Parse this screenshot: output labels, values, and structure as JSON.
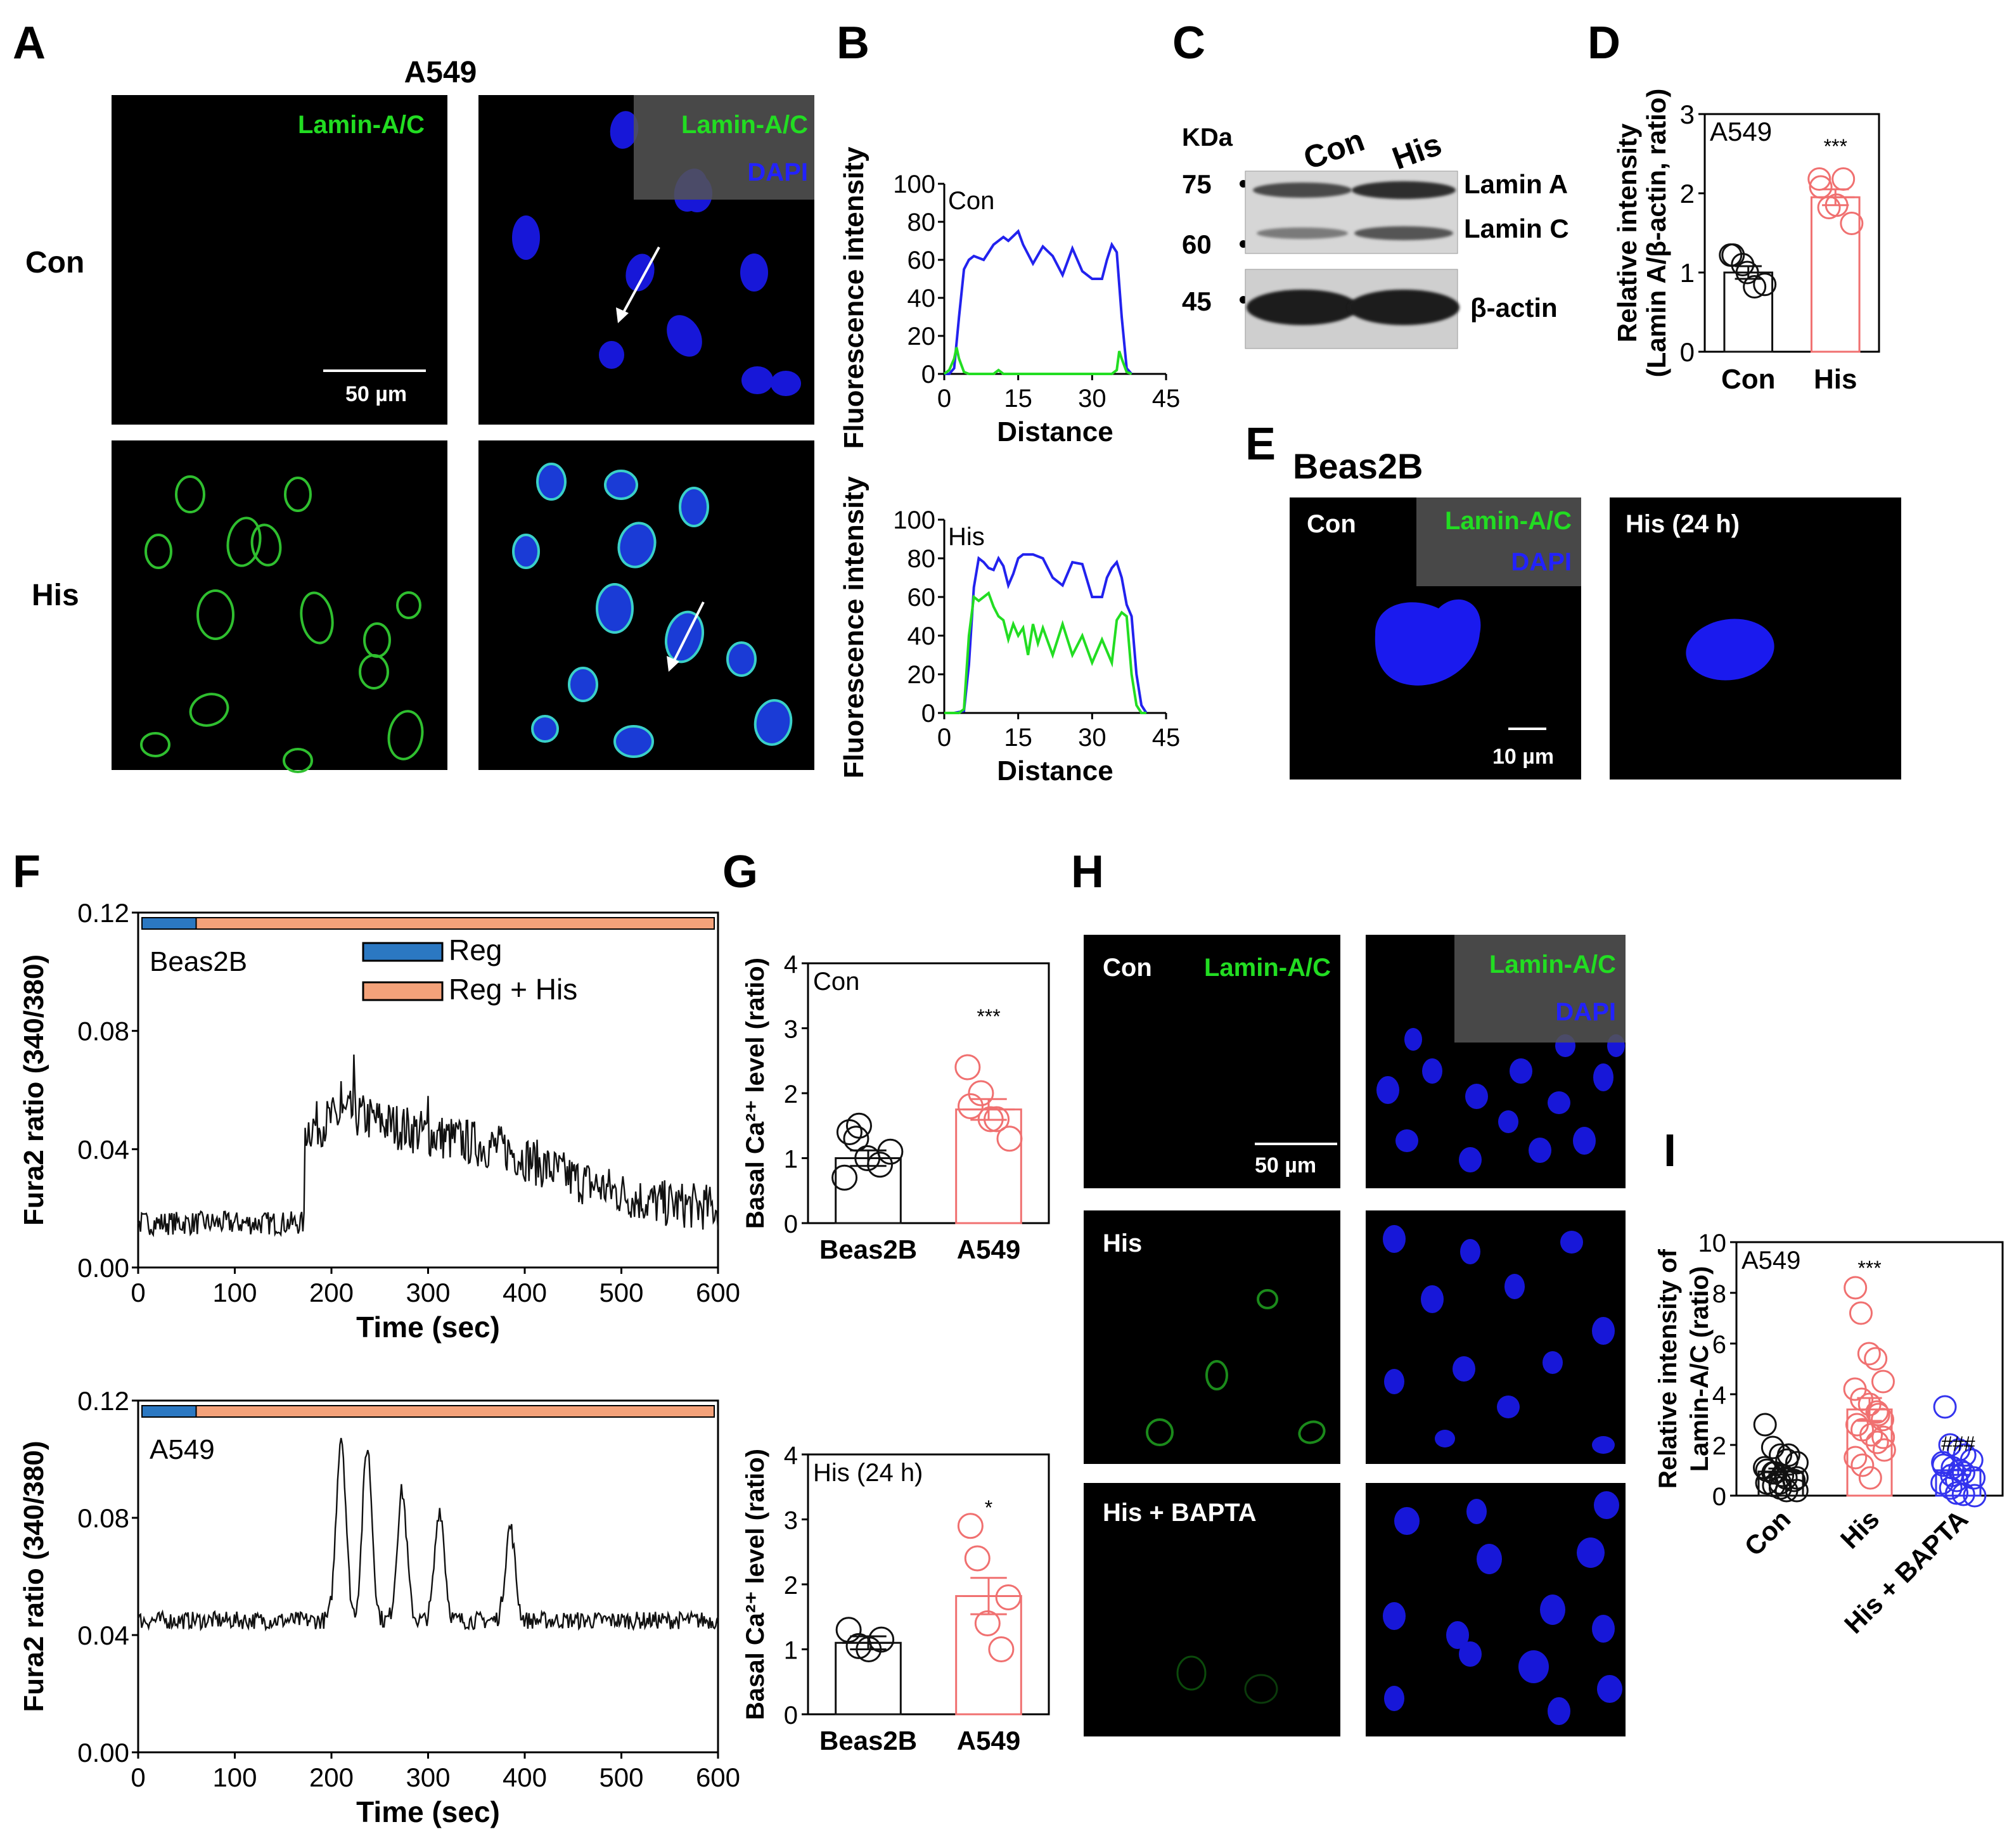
{
  "colors": {
    "green": "#22dd22",
    "blue": "#2222ee",
    "red": "#f07070",
    "orange": "#f4a27a",
    "steel": "#2b78c2",
    "black": "#111111"
  },
  "panel_labels": [
    "A",
    "B",
    "C",
    "D",
    "E",
    "F",
    "G",
    "H",
    "I"
  ],
  "panel_a": {
    "title": "A549",
    "row_labels": [
      "Con",
      "His"
    ],
    "green_label": "Lamin-A/C",
    "blue_label": "DAPI",
    "scale_bar": "50 µm"
  },
  "panel_c": {
    "kda_title": "KDa",
    "markers": [
      "75",
      "60",
      "45"
    ],
    "lanes": [
      "Con",
      "His"
    ],
    "band_labels": [
      "Lamin A",
      "Lamin C",
      "β-actin"
    ]
  },
  "panel_e": {
    "title": "Beas2B",
    "con_label": "Con",
    "his_label": "His (24 h)",
    "green_label": "Lamin-A/C",
    "blue_label": "DAPI",
    "scale_bar": "10 µm"
  },
  "panel_h": {
    "rows": [
      "Con",
      "His",
      "His + BAPTA"
    ],
    "green_label": "Lamin-A/C",
    "blue_label": "DAPI",
    "scale_bar": "50 µm"
  },
  "chart_data": [
    {
      "id": "B-top",
      "type": "line",
      "annotation": "Con",
      "xlabel": "Distance",
      "ylabel": "Fluorescence intensity",
      "xlim": [
        0,
        45
      ],
      "ylim": [
        0,
        100
      ],
      "xticks": [
        0,
        15,
        30,
        45
      ],
      "yticks": [
        0,
        20,
        40,
        60,
        80,
        100
      ],
      "series": [
        {
          "color": "#2222ee",
          "x": [
            0,
            1,
            2,
            3,
            4,
            5,
            6,
            8,
            10,
            12,
            13,
            15,
            16,
            18,
            20,
            22,
            24,
            26,
            28,
            30,
            32,
            33,
            34,
            35,
            36,
            37,
            38
          ],
          "y": [
            0,
            0,
            3,
            30,
            55,
            60,
            62,
            60,
            68,
            72,
            70,
            75,
            68,
            58,
            67,
            62,
            52,
            66,
            54,
            50,
            50,
            60,
            68,
            64,
            30,
            3,
            0
          ]
        },
        {
          "color": "#22dd22",
          "x": [
            0,
            1,
            2,
            2.5,
            3,
            4,
            5,
            10,
            11,
            12,
            34,
            35,
            35.5,
            36,
            37,
            38
          ],
          "y": [
            0,
            2,
            8,
            14,
            8,
            1,
            0,
            0,
            2,
            0,
            0,
            2,
            12,
            8,
            1,
            0
          ]
        }
      ]
    },
    {
      "id": "B-bottom",
      "type": "line",
      "annotation": "His",
      "xlabel": "Distance",
      "ylabel": "Fluorescence intensity",
      "xlim": [
        0,
        45
      ],
      "ylim": [
        0,
        100
      ],
      "xticks": [
        0,
        15,
        30,
        45
      ],
      "yticks": [
        0,
        20,
        40,
        60,
        80,
        100
      ],
      "series": [
        {
          "color": "#2222ee",
          "x": [
            0,
            2,
            4,
            5,
            6,
            7,
            8,
            9,
            10,
            11,
            12,
            13,
            14,
            15,
            16,
            18,
            20,
            22,
            24,
            26,
            28,
            30,
            32,
            33,
            34,
            35,
            36,
            37,
            38,
            39,
            40,
            41
          ],
          "y": [
            0,
            0,
            1,
            25,
            65,
            80,
            78,
            75,
            74,
            80,
            76,
            66,
            72,
            80,
            82,
            82,
            80,
            70,
            66,
            78,
            77,
            60,
            60,
            70,
            75,
            78,
            70,
            56,
            50,
            20,
            4,
            0
          ]
        },
        {
          "color": "#22dd22",
          "x": [
            0,
            3,
            4,
            5,
            6,
            7,
            8,
            9,
            10,
            11,
            12,
            13,
            14,
            15,
            16,
            17,
            18,
            19,
            20,
            22,
            24,
            26,
            28,
            30,
            32,
            34,
            35,
            36,
            37,
            38,
            39,
            40,
            41
          ],
          "y": [
            0,
            0,
            2,
            40,
            60,
            58,
            60,
            62,
            55,
            50,
            48,
            38,
            46,
            40,
            44,
            30,
            46,
            36,
            44,
            30,
            46,
            30,
            40,
            26,
            38,
            26,
            48,
            52,
            50,
            20,
            4,
            0,
            0
          ]
        }
      ]
    },
    {
      "id": "D",
      "type": "bar",
      "annotation": "A549",
      "significance": "***",
      "categories": [
        "Con",
        "His"
      ],
      "values": [
        1.0,
        1.95
      ],
      "errors": [
        0.08,
        0.1
      ],
      "colors": [
        "#111111",
        "#f07070"
      ],
      "points": [
        [
          1.22,
          1.1,
          1.0,
          0.82,
          0.85,
          1.22
        ],
        [
          2.18,
          1.82,
          1.85,
          2.18,
          1.62,
          2.08
        ]
      ],
      "ylabel": "Relative intensity (Lamin A/β-actin, ratio)",
      "ylim": [
        0,
        3
      ],
      "yticks": [
        0,
        1,
        2,
        3
      ]
    },
    {
      "id": "F-top",
      "type": "line",
      "annotation": "Beas2B",
      "xlabel": "Time (sec)",
      "ylabel": "Fura2 ratio (340/380)",
      "xlim": [
        0,
        600
      ],
      "ylim": [
        0,
        0.12
      ],
      "xticks": [
        0,
        100,
        200,
        300,
        400,
        500,
        600
      ],
      "yticks": [
        0.0,
        0.04,
        0.08,
        0.12
      ],
      "legend": [
        "Reg",
        "Reg + His"
      ],
      "baseline": 0.015,
      "step_at": 172,
      "envelope": [
        [
          172,
          0.047
        ],
        [
          220,
          0.052
        ],
        [
          300,
          0.045
        ],
        [
          380,
          0.04
        ],
        [
          450,
          0.03
        ],
        [
          530,
          0.022
        ],
        [
          600,
          0.02
        ]
      ],
      "spikes": [
        [
          223,
          0.072
        ],
        [
          210,
          0.063
        ],
        [
          300,
          0.058
        ]
      ],
      "noise": 0.004
    },
    {
      "id": "F-bottom",
      "type": "line",
      "annotation": "A549",
      "xlabel": "Time (sec)",
      "ylabel": "Fura2 ratio (340/380)",
      "xlim": [
        0,
        600
      ],
      "ylim": [
        0,
        0.12
      ],
      "xticks": [
        0,
        100,
        200,
        300,
        400,
        500,
        600
      ],
      "yticks": [
        0.0,
        0.04,
        0.08,
        0.12
      ],
      "baseline": 0.045,
      "peaks": [
        [
          210,
          0.108
        ],
        [
          237,
          0.104
        ],
        [
          273,
          0.089
        ],
        [
          312,
          0.083
        ],
        [
          385,
          0.077
        ]
      ],
      "noise": 0.003
    },
    {
      "id": "G-top",
      "type": "bar",
      "annotation": "Con",
      "significance": "***",
      "categories": [
        "Beas2B",
        "A549"
      ],
      "values": [
        1.0,
        1.75
      ],
      "errors": [
        0.12,
        0.16
      ],
      "colors": [
        "#111111",
        "#f07070"
      ],
      "points": [
        [
          1.4,
          1.3,
          1.0,
          0.9,
          1.1,
          0.7,
          1.5
        ],
        [
          2.4,
          2.0,
          1.6,
          1.6,
          1.3,
          1.8
        ]
      ],
      "ylabel": "Basal Ca²⁺ level (ratio)",
      "ylim": [
        0,
        4
      ],
      "yticks": [
        0,
        1,
        2,
        3,
        4
      ]
    },
    {
      "id": "G-bottom",
      "type": "bar",
      "annotation": "His (24 h)",
      "significance": "*",
      "categories": [
        "Beas2B",
        "A549"
      ],
      "values": [
        1.1,
        1.82
      ],
      "errors": [
        0.1,
        0.28
      ],
      "colors": [
        "#111111",
        "#f07070"
      ],
      "points": [
        [
          1.3,
          1.05,
          1.0,
          1.15
        ],
        [
          2.9,
          2.4,
          1.4,
          1.0,
          1.8
        ]
      ],
      "ylabel": "Basal Ca²⁺ level (ratio)",
      "ylim": [
        0,
        4
      ],
      "yticks": [
        0,
        1,
        2,
        3,
        4
      ]
    },
    {
      "id": "I",
      "type": "bar",
      "annotation": "A549",
      "significance": [
        "",
        "***",
        "###"
      ],
      "categories": [
        "Con",
        "His",
        "His + BAPTA"
      ],
      "values": [
        0.95,
        3.4,
        1.0
      ],
      "errors": [
        0.12,
        0.45,
        0.18
      ],
      "colors": [
        "#111111",
        "#f07070",
        "#3333ee"
      ],
      "points": [
        [
          2.8,
          1.9,
          1.6,
          1.4,
          1.3,
          1.0,
          0.9,
          0.8,
          0.7,
          0.6,
          0.5,
          0.4,
          0.3,
          0.2,
          0.2,
          1.1,
          0.9,
          0.5,
          1.6,
          0.7
        ],
        [
          8.2,
          7.2,
          5.6,
          5.4,
          4.5,
          4.2,
          3.8,
          3.6,
          3.3,
          3.0,
          2.8,
          2.6,
          2.4,
          2.1,
          1.8,
          1.5,
          1.2,
          0.7,
          3.2,
          2.3
        ],
        [
          3.5,
          2.0,
          1.8,
          1.6,
          1.4,
          1.2,
          1.1,
          1.0,
          0.9,
          0.7,
          0.5,
          0.3,
          0.1,
          0.05,
          0.0,
          1.3,
          0.8,
          0.6
        ]
      ],
      "ylabel": "Relative intensity of Lamin-A/C (ratio)",
      "ylim": [
        0,
        10
      ],
      "yticks": [
        0,
        2,
        4,
        6,
        8,
        10
      ]
    }
  ]
}
